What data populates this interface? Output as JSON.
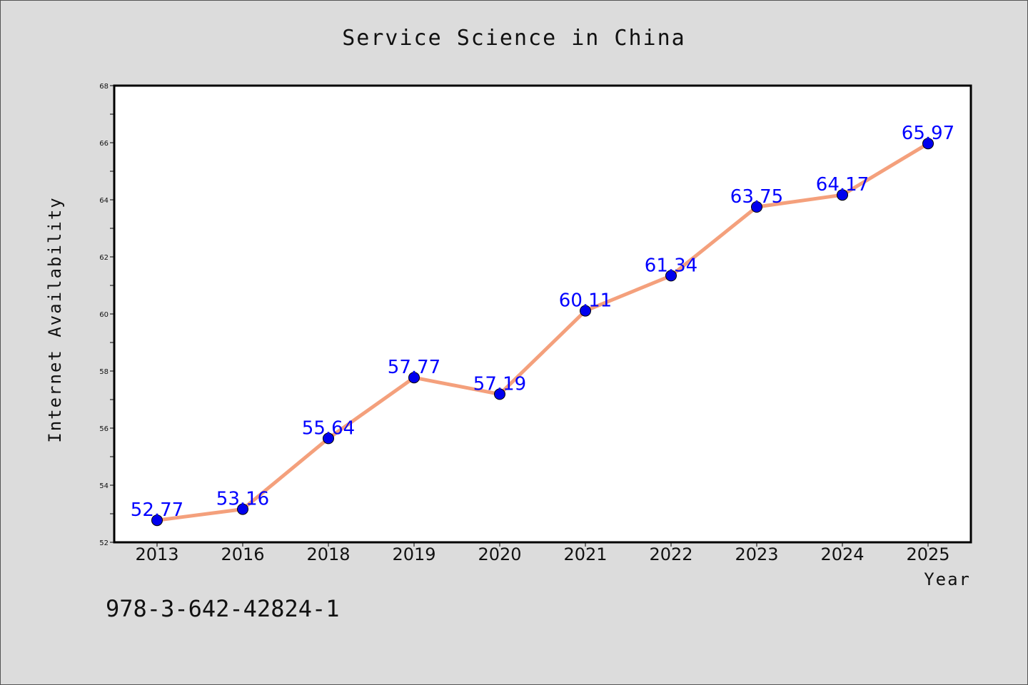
{
  "chart_data": {
    "type": "line",
    "title": "Service Science in China",
    "xlabel": "Year",
    "ylabel": "Internet Availability",
    "categories": [
      "2013",
      "2016",
      "2018",
      "2019",
      "2020",
      "2021",
      "2022",
      "2023",
      "2024",
      "2025"
    ],
    "series": [
      {
        "values": [
          52.77,
          53.16,
          55.64,
          57.77,
          57.19,
          60.11,
          61.34,
          63.75,
          64.17,
          65.97
        ],
        "line_color": "#f4a07c",
        "marker_color": "#0000ee"
      }
    ],
    "data_labels": [
      "52.77",
      "53.16",
      "55.64",
      "57.77",
      "57.19",
      "60.11",
      "61.34",
      "63.75",
      "64.17",
      "65.97"
    ],
    "ylim": [
      52,
      68
    ],
    "yticks": [
      "52",
      "54",
      "56",
      "58",
      "60",
      "62",
      "64",
      "66",
      "68"
    ],
    "grid": false,
    "label_color": "#0000ff"
  },
  "footer": {
    "isbn": "978-3-642-42824-1"
  }
}
